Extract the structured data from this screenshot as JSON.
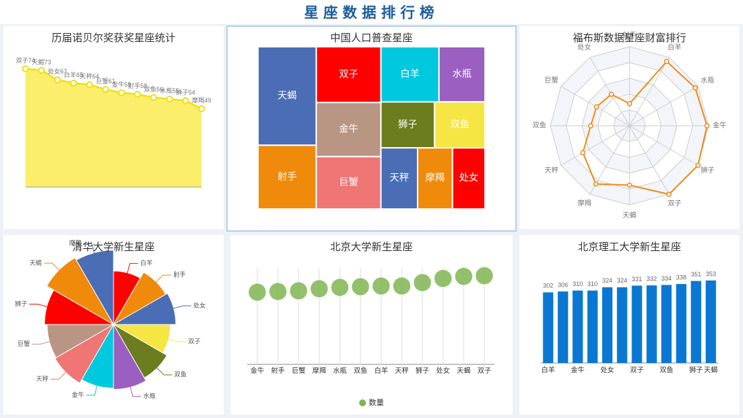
{
  "title": "星座数据排行榜",
  "chart_data": [
    {
      "type": "area",
      "title": "历届诺贝尔奖获奖星座统计",
      "categories": [
        "双子",
        "天蝎",
        "处女",
        "白羊",
        "天秤",
        "巨蟹",
        "金牛",
        "射手",
        "双鱼",
        "水瓶",
        "狮子",
        "摩羯"
      ],
      "values": [
        74,
        73,
        67,
        65,
        64,
        61,
        59,
        58,
        56,
        55,
        54,
        49
      ],
      "ylim": [
        0,
        80
      ],
      "color": "#fbee6a",
      "line_color": "#f0df12"
    },
    {
      "type": "treemap",
      "title": "中国人口普查星座",
      "categories": [
        "天蝎",
        "射手",
        "双子",
        "金牛",
        "巨蟹",
        "白羊",
        "水瓶",
        "狮子",
        "双鱼",
        "天秤",
        "摩羯",
        "处女"
      ],
      "values": [
        15.6,
        10.1,
        9.8,
        9.5,
        9.2,
        8.7,
        6.9,
        6.7,
        6.3,
        6.1,
        5.8,
        5.4
      ],
      "colors": [
        "#4a6db5",
        "#f08a0b",
        "#ff0000",
        "#b99583",
        "#f07575",
        "#00c9df",
        "#9b5fc0",
        "#6b7d1e",
        "#f6e644",
        "#4a6db5",
        "#f08a0b",
        "#ff0000"
      ]
    },
    {
      "type": "radar",
      "title": "福布斯数据星座财富排行",
      "categories": [
        "射手",
        "白羊",
        "水瓶",
        "金牛",
        "狮子",
        "双子",
        "天蝎",
        "摩羯",
        "天秤",
        "双鱼",
        "巨蟹",
        "处女"
      ],
      "values": [
        28,
        94,
        96,
        98,
        100,
        100,
        75,
        85,
        68,
        49,
        48,
        46
      ],
      "ylim": [
        0,
        100
      ],
      "color": "#ee8a17"
    },
    {
      "type": "rose",
      "title": "清华大学新生星座",
      "categories": [
        "白羊",
        "射手",
        "处女",
        "双子",
        "双鱼",
        "水瓶",
        "金牛",
        "天秤",
        "巨蟹",
        "狮子",
        "天蝎",
        "摩羯"
      ],
      "values": [
        80,
        90,
        93,
        85,
        92,
        97,
        95,
        101,
        99,
        103,
        115,
        111
      ],
      "colors": [
        "#ff0000",
        "#f08a0b",
        "#4a6db5",
        "#f6e644",
        "#6b7d1e",
        "#9b5fc0",
        "#00c9df",
        "#f07575",
        "#b99583",
        "#ff0000",
        "#f08a0b",
        "#4a6db5"
      ]
    },
    {
      "type": "scatter",
      "title": "北京大学新生星座",
      "categories": [
        "金牛",
        "射手",
        "巨蟹",
        "摩羯",
        "水瓶",
        "双鱼",
        "白羊",
        "天秤",
        "狮子",
        "处女",
        "天蝎",
        "双子"
      ],
      "series": [
        {
          "name": "数量",
          "color": "#7fb551",
          "values": [
            105,
            106,
            107,
            110,
            112,
            113,
            114,
            114,
            119,
            125,
            128,
            129
          ]
        }
      ],
      "ylim": [
        0,
        140
      ]
    },
    {
      "type": "bar",
      "title": "北京理工大学新生星座",
      "categories": [
        "白羊",
        null,
        "金牛",
        null,
        "处女",
        null,
        "双子",
        null,
        "双鱼",
        null,
        "狮子",
        "天蝎"
      ],
      "values": [
        302,
        306,
        310,
        310,
        324,
        324,
        331,
        332,
        334,
        338,
        351,
        353
      ],
      "ylim": [
        0,
        400
      ],
      "color": "#0a78d2"
    }
  ]
}
